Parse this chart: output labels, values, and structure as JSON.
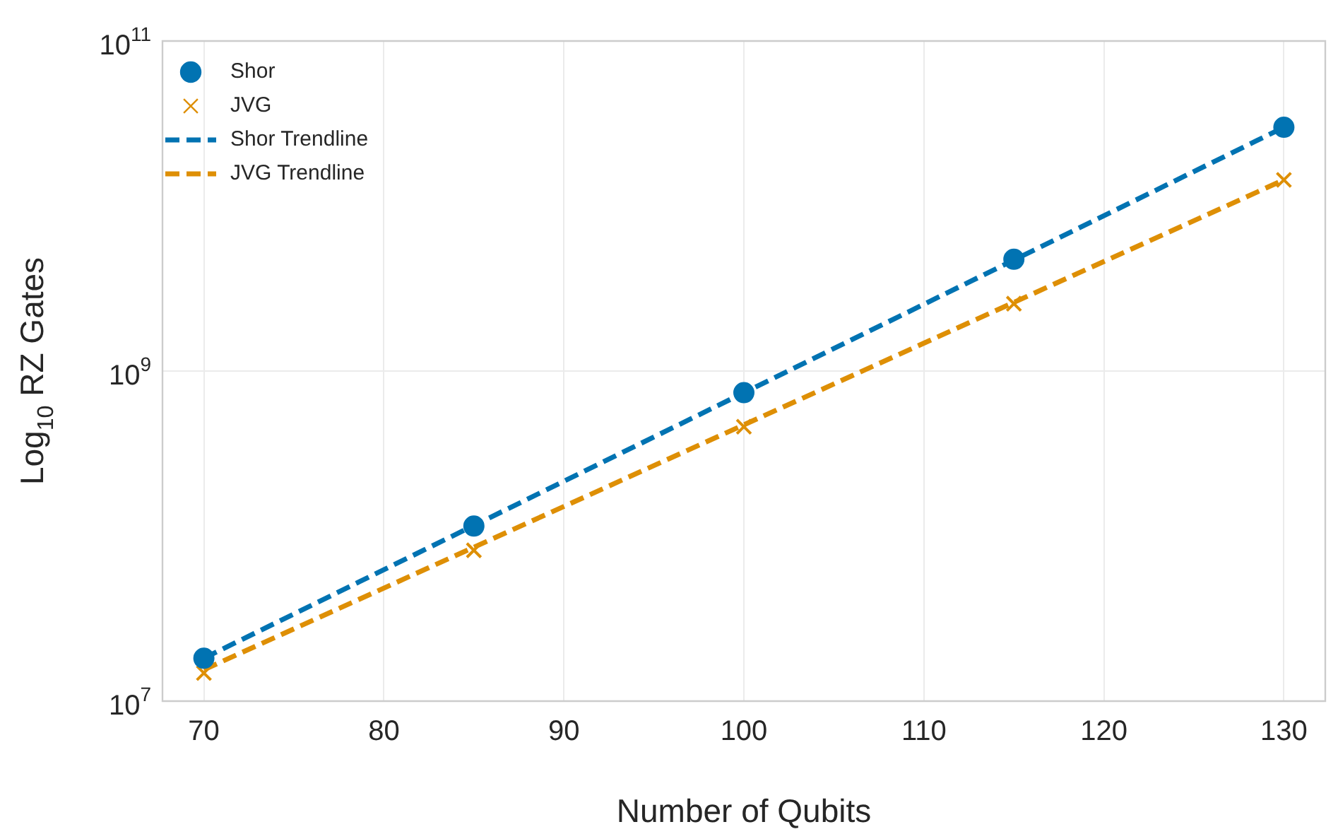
{
  "chart_data": {
    "type": "scatter",
    "xlabel": "Number of Qubits",
    "ylabel": "Log$_{10}$ RZ Gates",
    "log": "y",
    "grid": true,
    "legend": "top left",
    "xlim": [
      67.7,
      132.3
    ],
    "xticks": [
      70,
      80,
      90,
      100,
      110,
      120,
      130
    ],
    "ylim": [
      10000000,
      100000000000
    ],
    "yticks": [
      {
        "value": 10000000,
        "label": "10$^{7}$"
      },
      {
        "value": 1000000000,
        "label": "10$^{9}$"
      },
      {
        "value": 100000000000,
        "label": "10$^{11}$"
      }
    ],
    "x": [
      70,
      85,
      100,
      115,
      130
    ],
    "series": [
      {
        "name": "Shor",
        "marker": "circle",
        "color": "#0173b2",
        "values": [
          18200000,
          115000000,
          740000000,
          4760000000,
          30000000000
        ]
      },
      {
        "name": "JVG",
        "marker": "cross",
        "color": "#de8f05",
        "values": [
          14800000,
          82000000,
          460000000,
          2560000000,
          14400000000
        ]
      },
      {
        "name": "Shor Trendline",
        "type": "line",
        "line_style": "dashed",
        "marker": "none",
        "color": "#0173b2",
        "values": [
          18200000,
          null,
          null,
          null,
          30000000000
        ]
      },
      {
        "name": "JVG Trendline",
        "type": "line",
        "line_style": "dashed",
        "marker": "none",
        "color": "#de8f05",
        "values": [
          15500000,
          null,
          null,
          null,
          14400000000
        ]
      }
    ]
  }
}
